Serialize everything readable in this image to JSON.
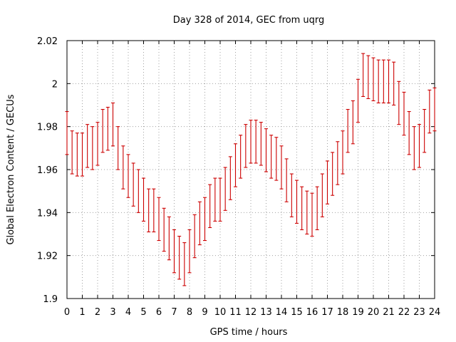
{
  "chart_data": {
    "type": "errorbar",
    "title": "Day 328 of 2014, GEC from uqrg",
    "xlabel": "GPS time / hours",
    "ylabel": "Global Electron Content / GECUs",
    "xlim": [
      0,
      24
    ],
    "ylim": [
      1.9,
      2.02
    ],
    "xticks": [
      "0",
      "1",
      "2",
      "3",
      "4",
      "5",
      "6",
      "7",
      "8",
      "9",
      "10",
      "11",
      "12",
      "13",
      "14",
      "15",
      "16",
      "17",
      "18",
      "19",
      "20",
      "21",
      "22",
      "23",
      "24"
    ],
    "yticks": [
      "1.9",
      "1.92",
      "1.94",
      "1.96",
      "1.98",
      "2",
      "2.02"
    ],
    "grid": true,
    "error": 0.01,
    "series_color": "#cc0000",
    "x": [
      0,
      0.333,
      0.667,
      1,
      1.333,
      1.667,
      2,
      2.333,
      2.667,
      3,
      3.333,
      3.667,
      4,
      4.333,
      4.667,
      5,
      5.333,
      5.667,
      6,
      6.333,
      6.667,
      7,
      7.333,
      7.667,
      8,
      8.333,
      8.667,
      9,
      9.333,
      9.667,
      10,
      10.333,
      10.667,
      11,
      11.333,
      11.667,
      12,
      12.333,
      12.667,
      13,
      13.333,
      13.667,
      14,
      14.333,
      14.667,
      15,
      15.333,
      15.667,
      16,
      16.333,
      16.667,
      17,
      17.333,
      17.667,
      18,
      18.333,
      18.667,
      19,
      19.333,
      19.667,
      20,
      20.333,
      20.667,
      21,
      21.333,
      21.667,
      22,
      22.333,
      22.667,
      23,
      23.333,
      23.667,
      24
    ],
    "y": [
      1.977,
      1.968,
      1.967,
      1.967,
      1.971,
      1.97,
      1.972,
      1.978,
      1.979,
      1.981,
      1.97,
      1.961,
      1.957,
      1.953,
      1.95,
      1.946,
      1.941,
      1.941,
      1.937,
      1.932,
      1.928,
      1.922,
      1.919,
      1.916,
      1.922,
      1.929,
      1.935,
      1.937,
      1.943,
      1.946,
      1.946,
      1.951,
      1.956,
      1.962,
      1.966,
      1.971,
      1.973,
      1.973,
      1.972,
      1.969,
      1.966,
      1.965,
      1.961,
      1.955,
      1.948,
      1.945,
      1.942,
      1.94,
      1.939,
      1.942,
      1.948,
      1.954,
      1.958,
      1.963,
      1.968,
      1.978,
      1.982,
      1.992,
      2.004,
      2.003,
      2.002,
      2.001,
      2.001,
      2.001,
      2.0,
      1.991,
      1.986,
      1.977,
      1.97,
      1.971,
      1.978,
      1.987,
      1.988
    ]
  }
}
